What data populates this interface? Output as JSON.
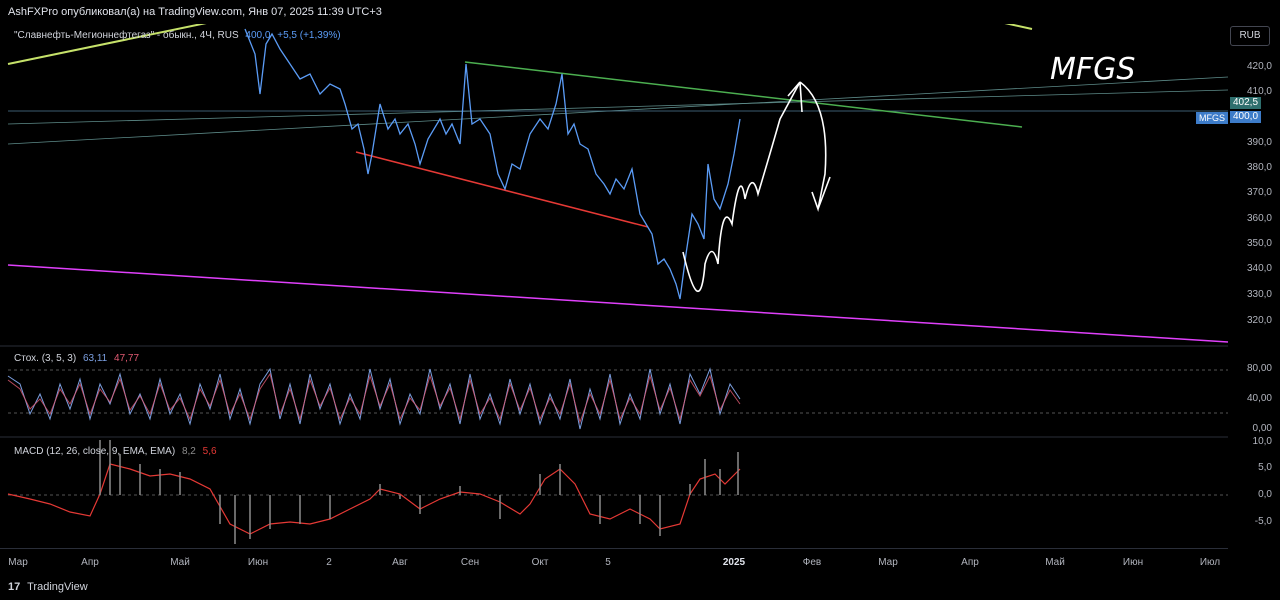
{
  "header": {
    "publisher_line": "AshFXPro опубликовал(а) на TradingView.com, Янв 07, 2025 11:39 UTC+3"
  },
  "main_legend": {
    "symbol": "\"Славнефть-Мегионнефтегаз\" - обыкн., 4Ч, RUS",
    "price": "400,0",
    "change": "+5,5 (+1,39%)"
  },
  "currency": "RUB",
  "annotation_text": "MFGS",
  "price_axis": {
    "ticks": [
      "420,0",
      "410,0",
      "390,0",
      "380,0",
      "370,0",
      "360,0",
      "350,0",
      "340,0",
      "330,0",
      "320,0"
    ],
    "badge_high": "402,5",
    "badge_last": "400,0",
    "symbol_tag": "MFGS"
  },
  "stoch": {
    "label": "Стох. (3, 5, 3)",
    "k": "63,11",
    "d": "47,77",
    "ticks": [
      "80,00",
      "40,00",
      "0,00"
    ]
  },
  "macd": {
    "label": "MACD (12, 26, close, 9, EMA, EMA)",
    "macd": "8,2",
    "signal": "5,6",
    "ticks": [
      "10,0",
      "5,0",
      "0,0",
      "-5,0"
    ]
  },
  "time_axis": [
    "Мар",
    "Апр",
    "Май",
    "Июн",
    "2",
    "Авг",
    "Сен",
    "Окт",
    "5",
    "2025",
    "Фев",
    "Мар",
    "Апр",
    "Май",
    "Июн",
    "Июл"
  ],
  "footer": {
    "brand": "TradingView"
  },
  "colors": {
    "price_line": "#5b9cf6",
    "resistance": "#4caf50",
    "support_red": "#e53935",
    "magenta": "#e040fb",
    "stoch_k": "#7b9fe0",
    "stoch_d": "#e05a72",
    "macd_line": "#e53935",
    "histogram": "#8c8c8c"
  }
}
